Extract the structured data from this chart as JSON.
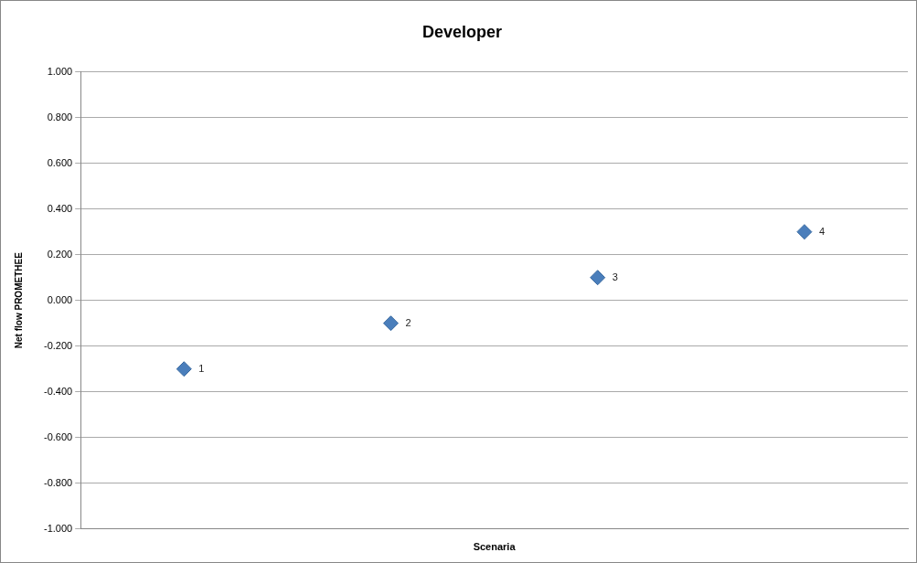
{
  "chart_data": {
    "type": "scatter",
    "title": "Developer",
    "xlabel": "Scenaria",
    "ylabel": "Net flow PROMETHEE",
    "categories": [
      "1",
      "2",
      "3",
      "4"
    ],
    "series": [
      {
        "color": "#4a7ebb",
        "values": [
          -0.3,
          -0.1,
          0.1,
          0.3
        ]
      }
    ],
    "ylim": [
      -1,
      1
    ],
    "yticks": [
      {
        "value": -1,
        "label": "-1.000"
      },
      {
        "value": -0.8,
        "label": "-0.800"
      },
      {
        "value": -0.6,
        "label": "-0.600"
      },
      {
        "value": -0.4,
        "label": "-0.400"
      },
      {
        "value": -0.2,
        "label": "-0.200"
      },
      {
        "value": 0,
        "label": "0.000"
      },
      {
        "value": 0.2,
        "label": "0.200"
      },
      {
        "value": 0.4,
        "label": "0.400"
      },
      {
        "value": 0.6,
        "label": "0.600"
      },
      {
        "value": 0.8,
        "label": "0.800"
      },
      {
        "value": 1,
        "label": "1.000"
      }
    ],
    "grid": "y",
    "marker": "diamond",
    "tick_labels": "y"
  }
}
